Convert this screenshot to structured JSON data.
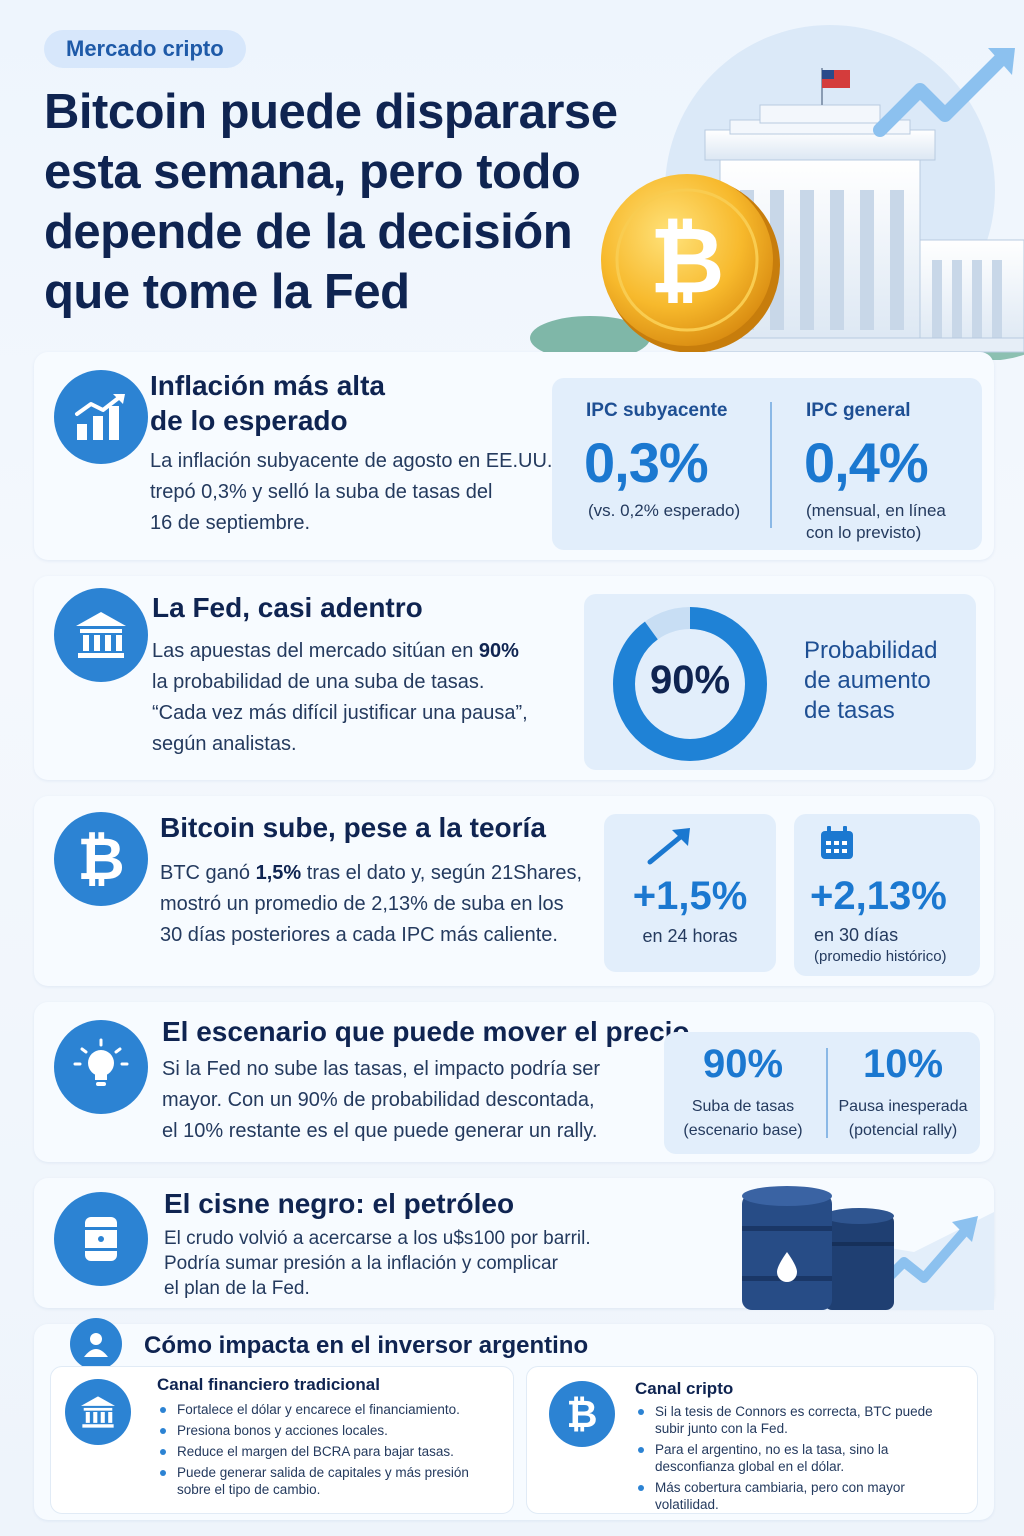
{
  "header": {
    "tag": "Mercado cripto",
    "title_lines": [
      "Bitcoin puede dispararse",
      "esta semana, pero todo",
      "depende de la decisión",
      "que tome la Fed"
    ]
  },
  "inflation": {
    "icon": "chart-up-icon",
    "title_line1": "Inflación más alta",
    "title_line2": "de lo esperado",
    "body_lines": [
      "La inflación subyacente de agosto en EE.UU.",
      "trepó 0,3% y selló la suba de tasas del",
      "16 de septiembre."
    ],
    "stat1_label": "IPC subyacente",
    "stat1_value": "0,3%",
    "stat1_sub": "(vs. 0,2% esperado)",
    "stat2_label": "IPC general",
    "stat2_value": "0,4%",
    "stat2_sub_line1": "(mensual, en línea",
    "stat2_sub_line2": "con lo previsto)"
  },
  "fed": {
    "icon": "bank-icon",
    "title": "La Fed, casi adentro",
    "body_line1_pre": "Las apuestas del mercado sitúan en ",
    "body_line1_bold": "90%",
    "body_lines": [
      "la probabilidad de una suba de tasas.",
      "“Cada vez más difícil justificar una pausa”,",
      "según analistas."
    ],
    "gauge_value": "90%",
    "gauge_fraction": 0.9,
    "gauge_label_lines": [
      "Probabilidad",
      "de aumento",
      "de tasas"
    ]
  },
  "bitcoin": {
    "icon": "bitcoin-icon",
    "title": "Bitcoin sube, pese a la teoría",
    "body_line1_pre": "BTC ganó ",
    "body_line1_bold": "1,5%",
    "body_line1_post": " tras el dato y, según 21Shares,",
    "body_lines": [
      "mostró un promedio de 2,13% de suba en los",
      "30 días posteriores a cada IPC más caliente."
    ],
    "stat1_value": "+1,5%",
    "stat1_sub": "en 24 horas",
    "stat2_value": "+2,13%",
    "stat2_sub_line1": "en 30 días",
    "stat2_sub_line2": "(promedio histórico)"
  },
  "scenario": {
    "icon": "lightbulb-icon",
    "title": "El escenario que puede mover el precio",
    "body_lines": [
      "Si la Fed no sube las tasas, el impacto podría ser",
      "mayor. Con un 90% de probabilidad descontada,",
      "el 10% restante es el que puede generar un rally."
    ],
    "stat1_value": "90%",
    "stat1_label": "Suba de tasas",
    "stat1_sub": "(escenario base)",
    "stat2_value": "10%",
    "stat2_label": "Pausa inesperada",
    "stat2_sub": "(potencial rally)"
  },
  "oil": {
    "icon": "oil-barrel-icon",
    "title": "El cisne negro: el petróleo",
    "body_lines": [
      "El crudo volvió a acercarse a los u$s100 por barril.",
      "Podría sumar presión a la inflación y complicar",
      "el plan de la Fed."
    ]
  },
  "investor": {
    "icon": "user-icon",
    "title": "Cómo impacta en el inversor argentino",
    "traditional": {
      "icon": "bank-icon",
      "title": "Canal financiero tradicional",
      "bullets": [
        [
          "Fortalece el dólar y encarece el financiamiento."
        ],
        [
          "Presiona bonos y acciones locales."
        ],
        [
          "Reduce el margen del BCRA para bajar tasas."
        ],
        [
          "Puede generar salida de capitales y más presión",
          "sobre el tipo de cambio."
        ]
      ]
    },
    "crypto": {
      "icon": "bitcoin-icon",
      "title": "Canal cripto",
      "bullets": [
        [
          "Si la tesis de Connors es correcta, BTC puede",
          "subir junto con la Fed."
        ],
        [
          "Para el argentino, no es la tasa, sino la",
          "desconfianza global en el dólar."
        ],
        [
          "Más cobertura cambiaria, pero con mayor",
          "volatilidad."
        ]
      ]
    }
  },
  "colors": {
    "accent": "#2c83d3",
    "title": "#0f2451",
    "stat": "#1b78d0",
    "panel": "#e2eefb"
  }
}
